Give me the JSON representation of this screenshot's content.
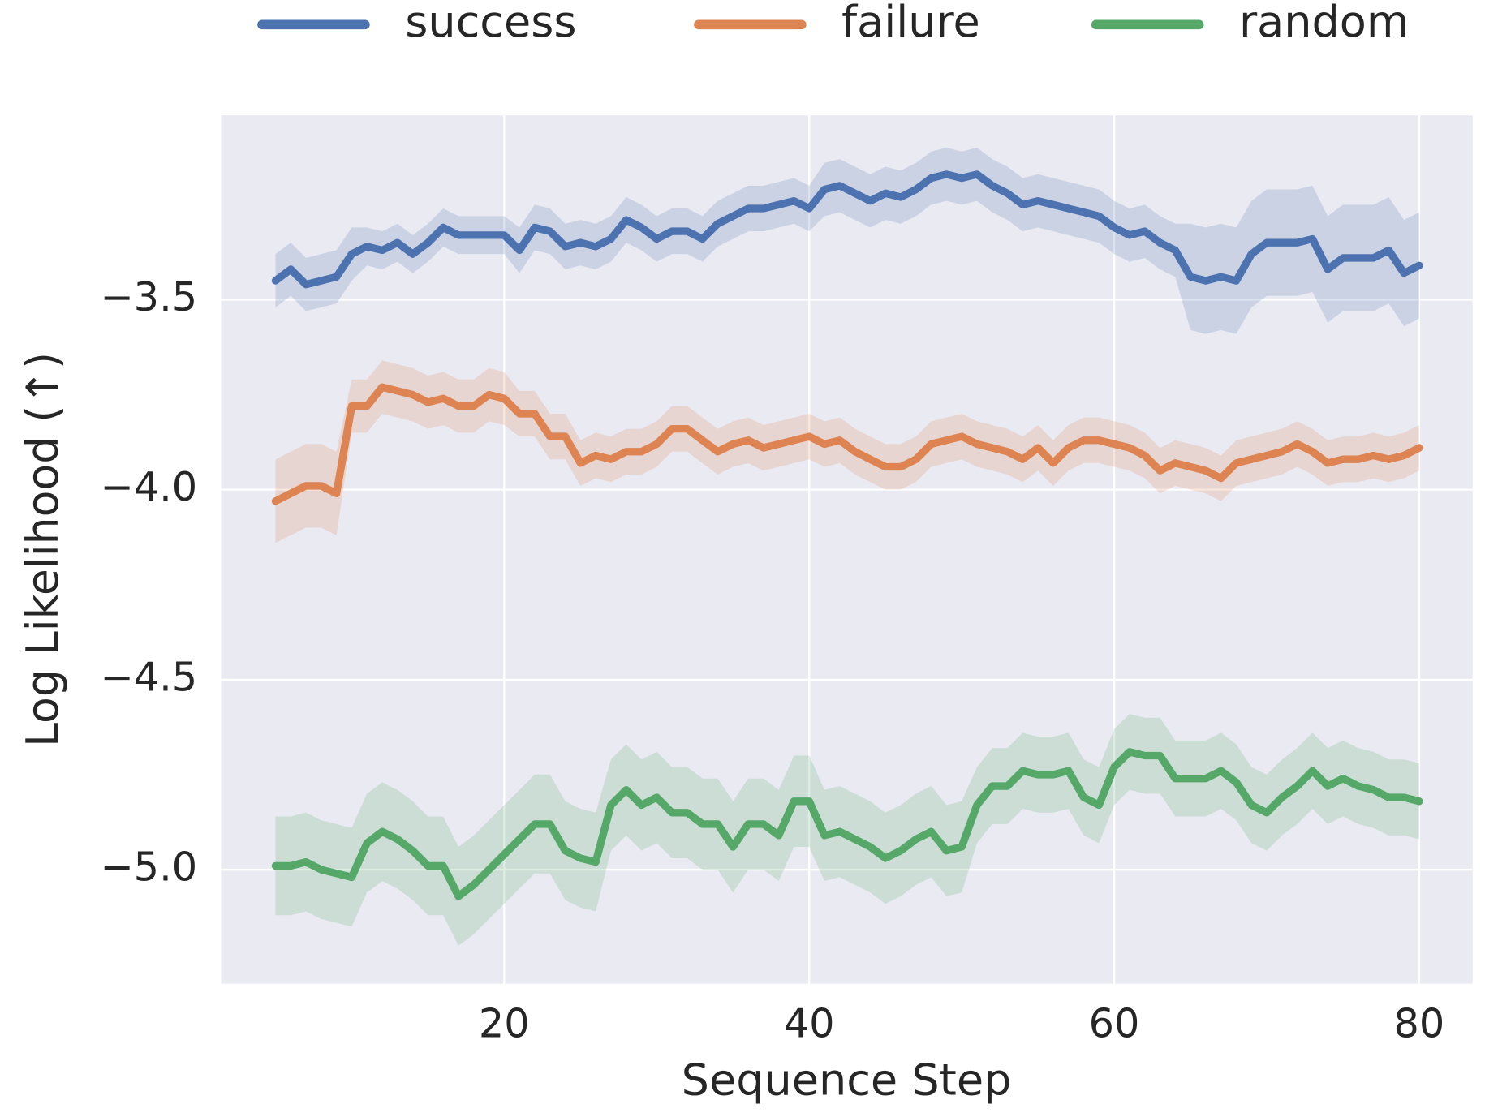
{
  "chart_data": {
    "type": "line",
    "xlabel": "Sequence Step",
    "ylabel": "Log Likelihood (↑)",
    "x": [
      5,
      6,
      7,
      8,
      9,
      10,
      11,
      12,
      13,
      14,
      15,
      16,
      17,
      18,
      19,
      20,
      21,
      22,
      23,
      24,
      25,
      26,
      27,
      28,
      29,
      30,
      31,
      32,
      33,
      34,
      35,
      36,
      37,
      38,
      39,
      40,
      41,
      42,
      43,
      44,
      45,
      46,
      47,
      48,
      49,
      50,
      51,
      52,
      53,
      54,
      55,
      56,
      57,
      58,
      59,
      60,
      61,
      62,
      63,
      64,
      65,
      66,
      67,
      68,
      69,
      70,
      71,
      72,
      73,
      74,
      75,
      76,
      77,
      78,
      79,
      80
    ],
    "series": [
      {
        "name": "success",
        "color": "#4c72b0",
        "values": [
          -3.45,
          -3.42,
          -3.46,
          -3.45,
          -3.44,
          -3.38,
          -3.36,
          -3.37,
          -3.35,
          -3.38,
          -3.35,
          -3.31,
          -3.33,
          -3.33,
          -3.33,
          -3.33,
          -3.37,
          -3.31,
          -3.32,
          -3.36,
          -3.35,
          -3.36,
          -3.34,
          -3.29,
          -3.31,
          -3.34,
          -3.32,
          -3.32,
          -3.34,
          -3.3,
          -3.28,
          -3.26,
          -3.26,
          -3.25,
          -3.24,
          -3.26,
          -3.21,
          -3.2,
          -3.22,
          -3.24,
          -3.22,
          -3.23,
          -3.21,
          -3.18,
          -3.17,
          -3.18,
          -3.17,
          -3.2,
          -3.22,
          -3.25,
          -3.24,
          -3.25,
          -3.26,
          -3.27,
          -3.28,
          -3.31,
          -3.33,
          -3.32,
          -3.35,
          -3.37,
          -3.44,
          -3.45,
          -3.44,
          -3.45,
          -3.38,
          -3.35,
          -3.35,
          -3.35,
          -3.34,
          -3.42,
          -3.39,
          -3.39,
          -3.39,
          -3.37,
          -3.43,
          -3.41
        ],
        "error": [
          0.07,
          0.07,
          0.07,
          0.07,
          0.07,
          0.07,
          0.05,
          0.05,
          0.05,
          0.05,
          0.05,
          0.05,
          0.05,
          0.05,
          0.05,
          0.05,
          0.06,
          0.06,
          0.06,
          0.06,
          0.06,
          0.06,
          0.06,
          0.06,
          0.06,
          0.06,
          0.06,
          0.06,
          0.06,
          0.06,
          0.06,
          0.06,
          0.06,
          0.06,
          0.06,
          0.06,
          0.07,
          0.07,
          0.07,
          0.07,
          0.07,
          0.07,
          0.07,
          0.07,
          0.07,
          0.07,
          0.07,
          0.07,
          0.07,
          0.07,
          0.07,
          0.07,
          0.07,
          0.07,
          0.07,
          0.07,
          0.07,
          0.07,
          0.07,
          0.07,
          0.14,
          0.14,
          0.14,
          0.14,
          0.14,
          0.14,
          0.14,
          0.14,
          0.14,
          0.14,
          0.14,
          0.14,
          0.14,
          0.14,
          0.14,
          0.14
        ]
      },
      {
        "name": "failure",
        "color": "#dd8452",
        "values": [
          -4.03,
          -4.01,
          -3.99,
          -3.99,
          -4.01,
          -3.78,
          -3.78,
          -3.73,
          -3.74,
          -3.75,
          -3.77,
          -3.76,
          -3.78,
          -3.78,
          -3.75,
          -3.76,
          -3.8,
          -3.8,
          -3.86,
          -3.86,
          -3.93,
          -3.91,
          -3.92,
          -3.9,
          -3.9,
          -3.88,
          -3.84,
          -3.84,
          -3.87,
          -3.9,
          -3.88,
          -3.87,
          -3.89,
          -3.88,
          -3.87,
          -3.86,
          -3.88,
          -3.87,
          -3.9,
          -3.92,
          -3.94,
          -3.94,
          -3.92,
          -3.88,
          -3.87,
          -3.86,
          -3.88,
          -3.89,
          -3.9,
          -3.92,
          -3.89,
          -3.93,
          -3.89,
          -3.87,
          -3.87,
          -3.88,
          -3.89,
          -3.91,
          -3.95,
          -3.93,
          -3.94,
          -3.95,
          -3.97,
          -3.93,
          -3.92,
          -3.91,
          -3.9,
          -3.88,
          -3.9,
          -3.93,
          -3.92,
          -3.92,
          -3.91,
          -3.92,
          -3.91,
          -3.89
        ],
        "error": [
          0.11,
          0.11,
          0.11,
          0.11,
          0.11,
          0.07,
          0.07,
          0.07,
          0.07,
          0.07,
          0.07,
          0.07,
          0.07,
          0.07,
          0.07,
          0.07,
          0.06,
          0.06,
          0.06,
          0.06,
          0.06,
          0.06,
          0.06,
          0.06,
          0.06,
          0.06,
          0.06,
          0.06,
          0.06,
          0.06,
          0.06,
          0.06,
          0.06,
          0.06,
          0.06,
          0.06,
          0.06,
          0.06,
          0.06,
          0.06,
          0.06,
          0.06,
          0.06,
          0.06,
          0.06,
          0.06,
          0.06,
          0.06,
          0.06,
          0.06,
          0.06,
          0.06,
          0.06,
          0.06,
          0.06,
          0.06,
          0.06,
          0.06,
          0.06,
          0.06,
          0.06,
          0.06,
          0.06,
          0.06,
          0.06,
          0.06,
          0.06,
          0.06,
          0.06,
          0.06,
          0.06,
          0.06,
          0.06,
          0.06,
          0.06,
          0.06
        ]
      },
      {
        "name": "random",
        "color": "#55a868",
        "values": [
          -4.99,
          -4.99,
          -4.98,
          -5.0,
          -5.01,
          -5.02,
          -4.93,
          -4.9,
          -4.92,
          -4.95,
          -4.99,
          -4.99,
          -5.07,
          -5.04,
          -5.0,
          -4.96,
          -4.92,
          -4.88,
          -4.88,
          -4.95,
          -4.97,
          -4.98,
          -4.83,
          -4.79,
          -4.83,
          -4.81,
          -4.85,
          -4.85,
          -4.88,
          -4.88,
          -4.94,
          -4.88,
          -4.88,
          -4.91,
          -4.82,
          -4.82,
          -4.91,
          -4.9,
          -4.92,
          -4.94,
          -4.97,
          -4.95,
          -4.92,
          -4.9,
          -4.95,
          -4.94,
          -4.83,
          -4.78,
          -4.78,
          -4.74,
          -4.75,
          -4.75,
          -4.74,
          -4.81,
          -4.83,
          -4.73,
          -4.69,
          -4.7,
          -4.7,
          -4.76,
          -4.76,
          -4.76,
          -4.74,
          -4.77,
          -4.83,
          -4.85,
          -4.81,
          -4.78,
          -4.74,
          -4.78,
          -4.76,
          -4.78,
          -4.79,
          -4.81,
          -4.81,
          -4.82
        ],
        "error": [
          0.13,
          0.13,
          0.13,
          0.13,
          0.13,
          0.13,
          0.13,
          0.13,
          0.13,
          0.13,
          0.13,
          0.13,
          0.13,
          0.13,
          0.13,
          0.13,
          0.13,
          0.13,
          0.13,
          0.13,
          0.13,
          0.13,
          0.12,
          0.12,
          0.12,
          0.12,
          0.12,
          0.12,
          0.12,
          0.12,
          0.12,
          0.12,
          0.12,
          0.12,
          0.12,
          0.12,
          0.12,
          0.12,
          0.12,
          0.12,
          0.12,
          0.12,
          0.12,
          0.12,
          0.12,
          0.12,
          0.1,
          0.1,
          0.1,
          0.1,
          0.1,
          0.1,
          0.1,
          0.1,
          0.1,
          0.1,
          0.1,
          0.1,
          0.1,
          0.1,
          0.1,
          0.1,
          0.1,
          0.1,
          0.1,
          0.1,
          0.1,
          0.1,
          0.1,
          0.1,
          0.1,
          0.1,
          0.1,
          0.1,
          0.1,
          0.1
        ]
      }
    ],
    "xlim": [
      1.44,
      83.5
    ],
    "ylim": [
      -5.3,
      -3.015
    ],
    "xticks": [
      20,
      40,
      60,
      80
    ],
    "yticks": [
      {
        "value": -5.0,
        "label": "−5.0"
      },
      {
        "value": -4.5,
        "label": "−4.5"
      },
      {
        "value": -4.0,
        "label": "−4.0"
      },
      {
        "value": -3.5,
        "label": "−3.5"
      }
    ],
    "grid": true,
    "legend": "top"
  }
}
